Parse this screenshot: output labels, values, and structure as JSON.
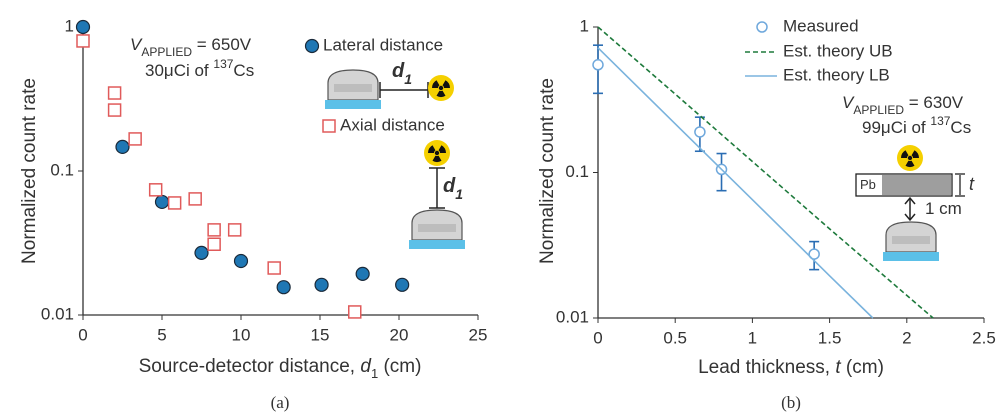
{
  "chart_data": [
    {
      "type": "scatter",
      "caption": "(a)",
      "ylabel": "Normalized count rate",
      "xlabel": [
        "Source-detector distance, ",
        "d",
        "1",
        " (cm)"
      ],
      "xlim": [
        0,
        25
      ],
      "xticks": [
        0,
        5,
        10,
        15,
        20,
        25
      ],
      "ylim": [
        0.01,
        1
      ],
      "yticks": [
        0.01,
        0.1,
        1
      ],
      "yscale": "log",
      "series": [
        {
          "name": "Lateral distance",
          "color": "#1f77b4",
          "marker": "o",
          "filled": true,
          "x": [
            0,
            2.5,
            5,
            7.5,
            10,
            12.7,
            15.1,
            17.7,
            20.2
          ],
          "values": [
            1,
            0.147,
            0.061,
            0.027,
            0.0237,
            0.0156,
            0.0162,
            0.0193,
            0.0162
          ]
        },
        {
          "name": "Axial distance",
          "color": "#e05a5a",
          "marker": "s",
          "filled": false,
          "x": [
            0,
            2,
            2,
            3.3,
            4.6,
            5.8,
            7.1,
            8.3,
            8.3,
            9.6,
            12.1,
            17.2
          ],
          "values": [
            0.8,
            0.348,
            0.265,
            0.167,
            0.074,
            0.06,
            0.064,
            0.039,
            0.031,
            0.039,
            0.0212,
            0.0105
          ]
        }
      ],
      "annotations": [
        [
          "V",
          "APPLIED",
          " = 650V"
        ],
        [
          "30μCi of ",
          "137",
          "Cs"
        ],
        [
          "d",
          "1"
        ],
        [
          "d",
          "1"
        ]
      ]
    },
    {
      "type": "scatter",
      "caption": "(b)",
      "ylabel": "Normalized count rate",
      "xlabel": [
        "Lead thickness, ",
        "t",
        " (cm)"
      ],
      "xlim": [
        0,
        2.5
      ],
      "xticks": [
        0,
        0.5,
        1,
        1.5,
        2,
        2.5
      ],
      "ylim": [
        0.01,
        1
      ],
      "yticks": [
        0.01,
        0.1,
        1
      ],
      "yscale": "log",
      "series": [
        {
          "name": "Measured",
          "color": "#6fa8dc",
          "marker": "o",
          "filled": false,
          "error_color": "#2a6db3",
          "x": [
            0,
            0.66,
            0.8,
            1.4
          ],
          "values": [
            0.55,
            0.19,
            0.105,
            0.0275
          ],
          "errors": [
            0.2,
            0.05,
            0.03,
            0.006
          ]
        },
        {
          "name": "Est. theory UB",
          "color": "#1e7a3c",
          "linestyle": "dashed",
          "x": [
            0,
            0.5,
            1,
            1.5,
            2,
            2.17
          ],
          "values": [
            1,
            0.346,
            0.119,
            0.041,
            0.0143,
            0.01
          ]
        },
        {
          "name": "Est. theory LB",
          "color": "#7ab3dd",
          "linestyle": "solid",
          "x": [
            0,
            0.5,
            1,
            1.5,
            1.78
          ],
          "values": [
            0.72,
            0.216,
            0.065,
            0.0195,
            0.01
          ]
        }
      ],
      "annotations": [
        [
          "V",
          "APPLIED",
          " = 630V"
        ],
        [
          "99μCi of ",
          "137",
          "Cs"
        ],
        [
          "Pb"
        ],
        [
          "t"
        ],
        [
          "1 cm"
        ]
      ]
    }
  ]
}
